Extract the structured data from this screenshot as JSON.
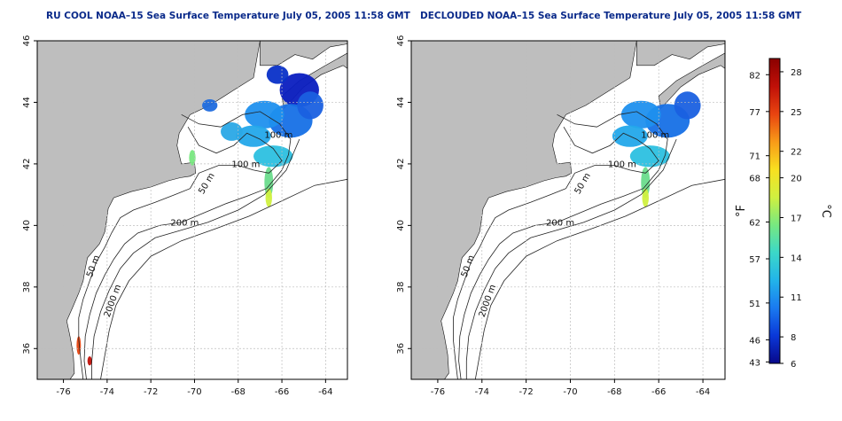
{
  "maps": [
    {
      "title": "RU COOL NOAA–15 Sea Surface Temperature July 05, 2005 11:58 GMT",
      "x_ticks": [
        "-76",
        "-74",
        "-72",
        "-70",
        "-68",
        "-66",
        "-64"
      ],
      "y_ticks": [
        "46",
        "44",
        "42",
        "40",
        "38",
        "36"
      ],
      "contour_labels": [
        "100 m",
        "100 m",
        "50 m",
        "200 m",
        "50 m",
        "2000 m"
      ]
    },
    {
      "title": "DECLOUDED NOAA–15 Sea Surface Temperature July 05, 2005 11:58 GMT",
      "x_ticks": [
        "-76",
        "-74",
        "-72",
        "-70",
        "-68",
        "-66",
        "-64"
      ],
      "y_ticks": [
        "46",
        "44",
        "42",
        "40",
        "38",
        "36"
      ],
      "contour_labels": [
        "100 m",
        "100 m",
        "50 m",
        "200 m",
        "50 m",
        "2000 m"
      ]
    }
  ],
  "axes": {
    "lon_range": [
      -77.2,
      -63.0
    ],
    "lat_range": [
      35.0,
      46.0
    ]
  },
  "colorbar": {
    "fahrenheit_label": "°F",
    "celsius_label": "°C",
    "f_ticks": [
      "82",
      "77",
      "71",
      "68",
      "62",
      "57",
      "51",
      "46",
      "43"
    ],
    "c_ticks": [
      "28",
      "25",
      "22",
      "20",
      "17",
      "14",
      "11",
      "8",
      "6"
    ],
    "f_values": [
      82,
      77,
      71,
      68,
      62,
      57,
      51,
      46,
      43
    ],
    "c_values": [
      28,
      25,
      22,
      20,
      17,
      14,
      11,
      8,
      6
    ],
    "c_range": [
      6,
      29
    ],
    "gradient": [
      "#08088a",
      "#0a38d8",
      "#1a7af0",
      "#22b4ea",
      "#3cd8c8",
      "#78e880",
      "#d0f040",
      "#f8e020",
      "#f89a18",
      "#e84410",
      "#c01008",
      "#8a0000"
    ]
  },
  "colors": {
    "land": "#bebebe",
    "ocean": "#ffffff",
    "contour": "#222222",
    "grid": "#bdbdbd"
  }
}
